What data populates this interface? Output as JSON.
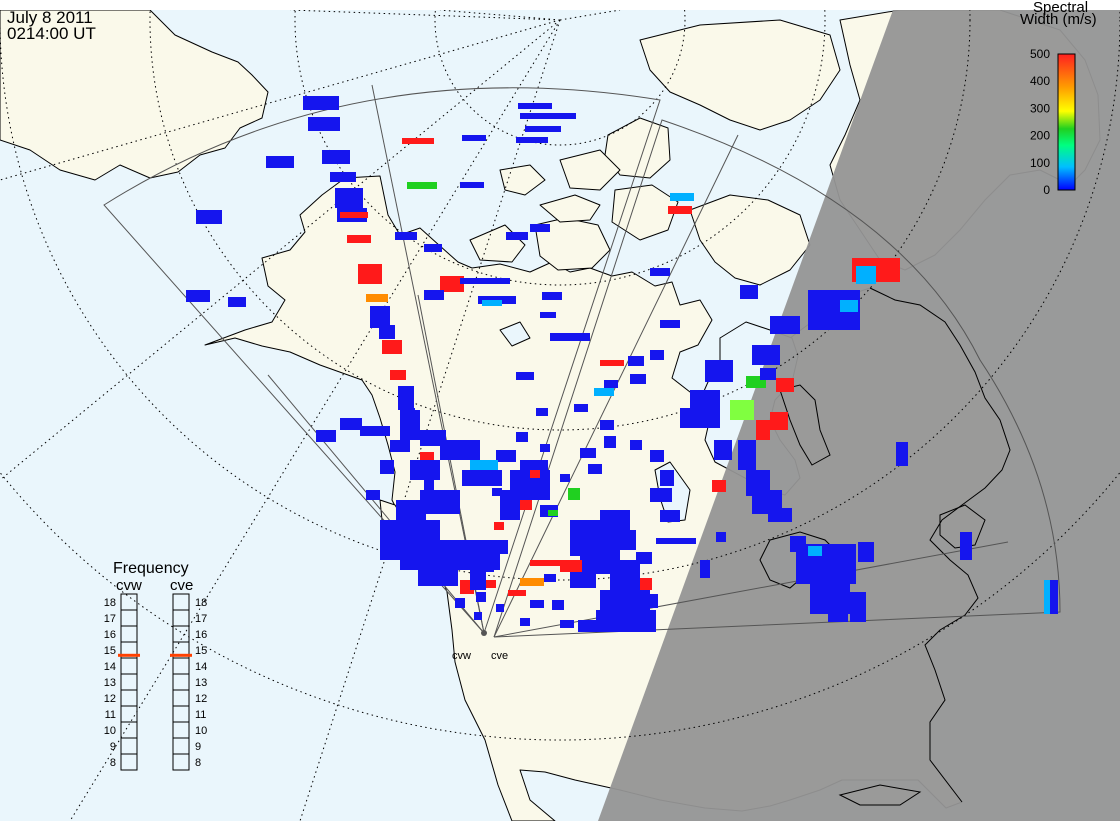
{
  "header": {
    "date": "July  8 2011",
    "time": "0214:00 UT"
  },
  "colorbar": {
    "title_line1": "Spectral",
    "title_line2": "Width (m/s)",
    "ticks": [
      "500",
      "400",
      "300",
      "200",
      "100",
      "0"
    ],
    "max_value": 500,
    "min_value": 0,
    "gradient_colors": [
      "#0000ff",
      "#00bfff",
      "#00ff80",
      "#20d020",
      "#ffff00",
      "#ffa000",
      "#ff2020"
    ]
  },
  "frequency_panel": {
    "title": "Frequency",
    "radars": [
      {
        "label": "cvw",
        "frequency": 15
      },
      {
        "label": "cve",
        "frequency": 15
      }
    ],
    "scale_labels": [
      "18",
      "17",
      "16",
      "15",
      "14",
      "13",
      "12",
      "11",
      "10",
      "9",
      "8"
    ],
    "scale_max": 18,
    "scale_min": 8,
    "marker_color": "#ff4000"
  },
  "radar_sites": [
    {
      "label": "cvw"
    },
    {
      "label": "cve"
    }
  ],
  "map_colors": {
    "ocean": "#eaf6fc",
    "land": "#faf9ea",
    "night": "#959595",
    "coast": "#000000",
    "grid": "#000000"
  }
}
